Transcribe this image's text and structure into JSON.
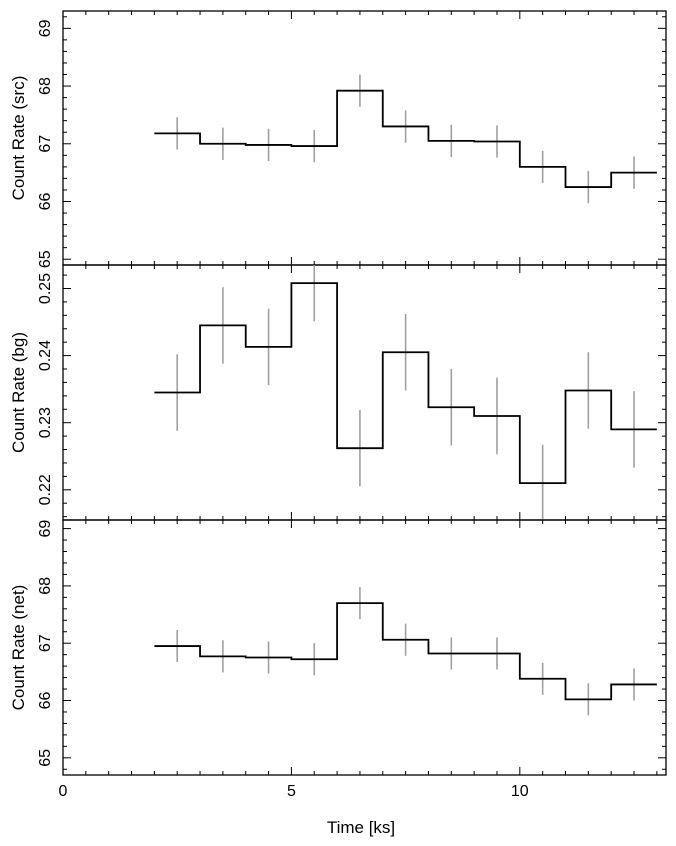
{
  "chart_data": [
    {
      "type": "line",
      "ylabel": "Count Rate (src)",
      "ylim": [
        64.9,
        69.3
      ],
      "yticks": [
        "65",
        "66",
        "67",
        "68",
        "69"
      ],
      "x": [
        2.5,
        3.5,
        4.5,
        5.5,
        6.5,
        7.5,
        8.5,
        9.5,
        10.5,
        11.5,
        12.5
      ],
      "values": [
        67.18,
        67.0,
        66.98,
        66.96,
        67.92,
        67.3,
        67.05,
        67.04,
        66.6,
        66.25,
        66.5
      ],
      "errors": [
        0.28,
        0.28,
        0.28,
        0.28,
        0.28,
        0.28,
        0.28,
        0.28,
        0.28,
        0.28,
        0.28
      ]
    },
    {
      "type": "line",
      "ylabel": "Count Rate (bg)",
      "ylim": [
        0.2155,
        0.2535
      ],
      "yticks": [
        "0.22",
        "0.23",
        "0.24",
        "0.25"
      ],
      "x": [
        2.5,
        3.5,
        4.5,
        5.5,
        6.5,
        7.5,
        8.5,
        9.5,
        10.5,
        11.5,
        12.5
      ],
      "values": [
        0.2345,
        0.2445,
        0.2413,
        0.2508,
        0.2262,
        0.2405,
        0.2323,
        0.231,
        0.221,
        0.2348,
        0.229
      ],
      "errors": [
        0.0057,
        0.0057,
        0.0057,
        0.0057,
        0.0057,
        0.0057,
        0.0057,
        0.0057,
        0.0057,
        0.0057,
        0.0057
      ]
    },
    {
      "type": "line",
      "ylabel": "Count Rate (net)",
      "ylim": [
        64.7,
        69.15
      ],
      "yticks": [
        "65",
        "66",
        "67",
        "68",
        "69"
      ],
      "x": [
        2.5,
        3.5,
        4.5,
        5.5,
        6.5,
        7.5,
        8.5,
        9.5,
        10.5,
        11.5,
        12.5
      ],
      "values": [
        66.95,
        66.77,
        66.75,
        66.72,
        67.7,
        67.06,
        66.82,
        66.82,
        66.38,
        66.02,
        66.28
      ],
      "errors": [
        0.28,
        0.28,
        0.28,
        0.28,
        0.28,
        0.28,
        0.28,
        0.28,
        0.28,
        0.28,
        0.28
      ]
    }
  ],
  "x_axis": {
    "label": "Time [ks]",
    "xlim": [
      0,
      13.2
    ],
    "ticks": [
      {
        "value": 0,
        "label": "0"
      },
      {
        "value": 5,
        "label": "5"
      },
      {
        "value": 10,
        "label": "10"
      }
    ]
  },
  "colors": {
    "step_line": "#000000",
    "error_bar": "#a0a0a0",
    "frame": "#000000"
  }
}
